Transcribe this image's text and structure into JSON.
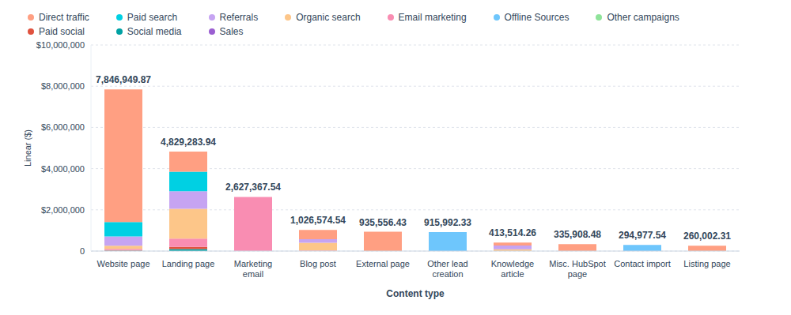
{
  "chart_data": {
    "type": "bar",
    "stacked": true,
    "grid": true,
    "legend": "top",
    "data_labels": true,
    "xlabel": "Content type",
    "ylabel": "Linear ($)",
    "categories": [
      "Website page",
      "Landing page",
      "Marketing email",
      "Blog post",
      "External page",
      "Other lead creation",
      "Knowledge article",
      "Misc. HubSpot page",
      "Contact import",
      "Listing page"
    ],
    "series": [
      {
        "name": "Direct traffic",
        "color": "#ff9f82",
        "values": [
          6436949.87,
          979283.94,
          0,
          456574.54,
          935556.43,
          0,
          143514.26,
          335908.48,
          0,
          260002.31
        ]
      },
      {
        "name": "Paid search",
        "color": "#00d0e3",
        "values": [
          700000,
          950000,
          0,
          0,
          0,
          0,
          0,
          0,
          0,
          0
        ]
      },
      {
        "name": "Referrals",
        "color": "#c6a4f2",
        "values": [
          450000,
          850000,
          0,
          170000,
          0,
          0,
          180000,
          0,
          0,
          0
        ]
      },
      {
        "name": "Organic search",
        "color": "#fdc689",
        "values": [
          150000,
          1450000,
          0,
          370000,
          0,
          0,
          90000,
          0,
          0,
          0
        ]
      },
      {
        "name": "Email marketing",
        "color": "#f98db2",
        "values": [
          60000,
          400000,
          2627367.54,
          30000,
          0,
          0,
          0,
          0,
          0,
          0
        ]
      },
      {
        "name": "Offline Sources",
        "color": "#6ec6fc",
        "values": [
          0,
          0,
          0,
          0,
          0,
          915992.33,
          0,
          0,
          294977.54,
          0
        ]
      },
      {
        "name": "Other campaigns",
        "color": "#8fe39a",
        "values": [
          0,
          0,
          0,
          0,
          0,
          0,
          0,
          0,
          0,
          0
        ]
      },
      {
        "name": "Paid social",
        "color": "#e0523f",
        "values": [
          30000,
          100000,
          0,
          0,
          0,
          0,
          0,
          0,
          0,
          0
        ]
      },
      {
        "name": "Social media",
        "color": "#00a1a3",
        "values": [
          20000,
          100000,
          0,
          0,
          0,
          0,
          0,
          0,
          0,
          0
        ]
      },
      {
        "name": "Sales",
        "color": "#9b5fd1",
        "values": [
          0,
          0,
          0,
          0,
          0,
          0,
          0,
          0,
          0,
          0
        ]
      }
    ],
    "totals": [
      7846949.87,
      4829283.94,
      2627367.54,
      1026574.54,
      935556.43,
      915992.33,
      413514.26,
      335908.48,
      294977.54,
      260002.31
    ],
    "total_labels": [
      "7,846,949.87",
      "4,829,283.94",
      "2,627,367.54",
      "1,026,574.54",
      "935,556.43",
      "915,992.33",
      "413,514.26",
      "335,908.48",
      "294,977.54",
      "260,002.31"
    ],
    "ylim": [
      0,
      10000000
    ],
    "yticks": [
      0,
      {
        "value": 2000000,
        "label": "$2,000,000"
      },
      {
        "value": 4000000,
        "label": "$4,000,000"
      },
      {
        "value": 6000000,
        "label": "$6,000,000"
      },
      {
        "value": 8000000,
        "label": "$8,000,000"
      },
      {
        "value": 10000000,
        "label": "$10,000,000"
      }
    ]
  }
}
